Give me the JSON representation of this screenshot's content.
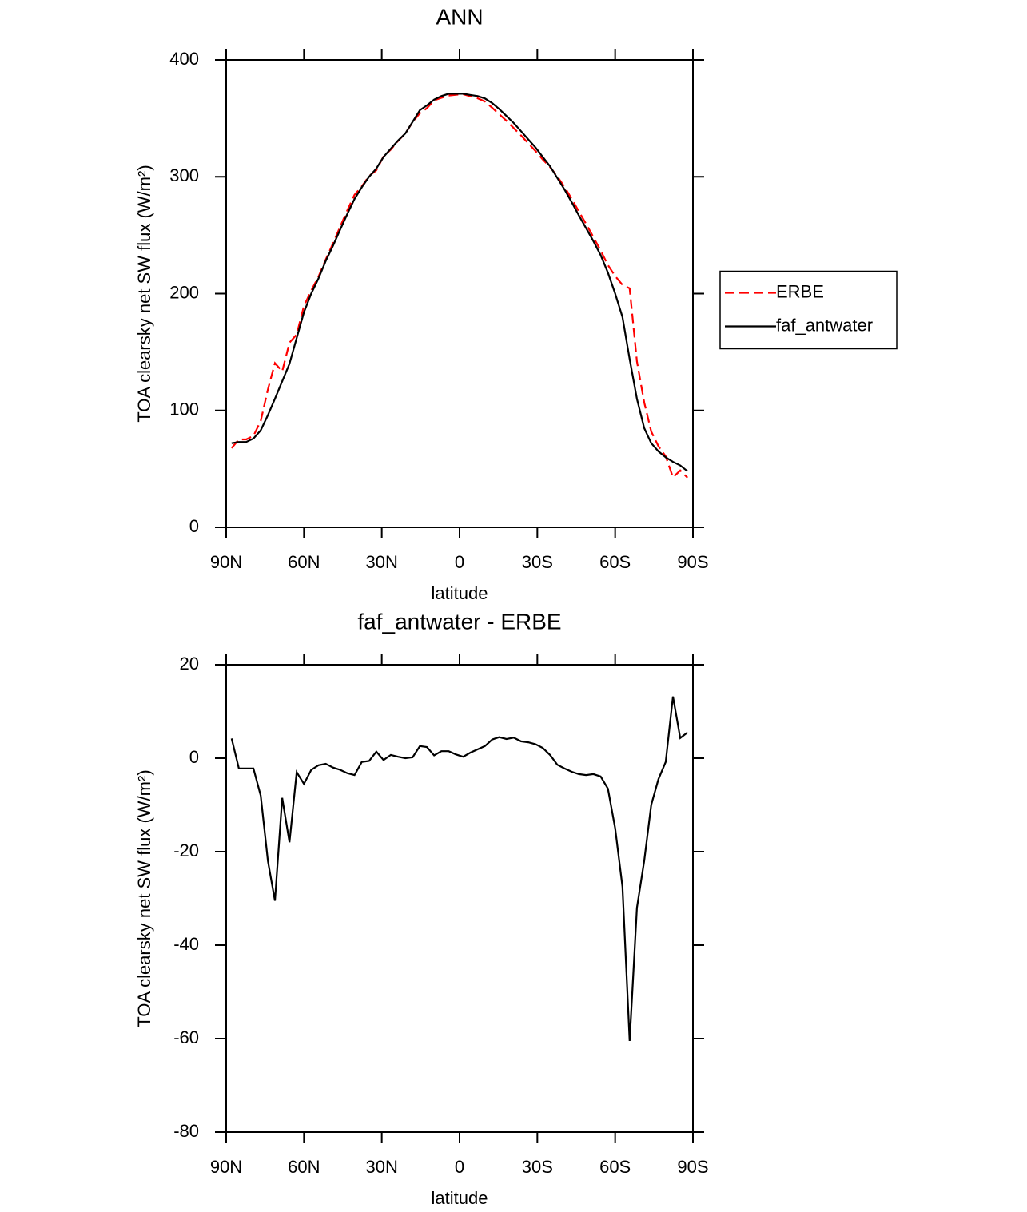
{
  "chart_data": [
    {
      "type": "line",
      "title": "ANN",
      "xlabel": "latitude",
      "ylabel": "TOA clearsky net SW flux (W/m²)",
      "x": [
        87.9,
        85.1,
        82.3,
        79.5,
        76.7,
        73.9,
        71.2,
        68.4,
        65.6,
        62.8,
        60.0,
        57.2,
        54.4,
        51.6,
        48.8,
        46.0,
        43.3,
        40.5,
        37.7,
        34.9,
        32.1,
        29.3,
        26.5,
        23.7,
        20.9,
        18.1,
        15.3,
        12.6,
        9.8,
        7.0,
        4.2,
        1.4,
        -1.4,
        -4.2,
        -7.0,
        -9.8,
        -12.6,
        -15.3,
        -18.1,
        -20.9,
        -23.7,
        -26.5,
        -29.3,
        -32.1,
        -34.9,
        -37.7,
        -40.5,
        -43.3,
        -46.0,
        -48.8,
        -51.6,
        -54.4,
        -57.2,
        -60.0,
        -62.8,
        -65.6,
        -68.4,
        -71.2,
        -73.9,
        -76.7,
        -79.5,
        -82.3,
        -85.1,
        -87.9
      ],
      "series": [
        {
          "name": "ERBE",
          "color": "#ff0000",
          "line_style": "dashed",
          "values": [
            67.8,
            75.2,
            75.2,
            78.2,
            91,
            118,
            140.5,
            133.5,
            158,
            165,
            189.5,
            202.5,
            214.5,
            229.2,
            243,
            257.5,
            271.2,
            284.6,
            291.8,
            300.6,
            305.6,
            317.4,
            323.3,
            330.7,
            337,
            346.8,
            354.4,
            358.6,
            365.4,
            367.5,
            369.5,
            370.2,
            370.7,
            368.8,
            367.1,
            364.4,
            359,
            353.5,
            347.9,
            341.6,
            335.4,
            328.6,
            322,
            314.8,
            308.3,
            300.4,
            291.2,
            280.9,
            270.4,
            259.6,
            248.4,
            236.9,
            224.5,
            215,
            207.5,
            204.5,
            142,
            107,
            82,
            69.5,
            60.8,
            42.8,
            48.7,
            42.5
          ]
        },
        {
          "name": "faf_antwater",
          "color": "#000000",
          "line_style": "solid",
          "values": [
            72,
            73,
            73,
            76,
            83,
            96,
            110,
            125,
            140,
            162,
            184,
            200,
            213,
            228,
            241,
            255,
            268,
            281,
            291,
            300,
            307,
            317,
            324,
            331,
            337,
            347,
            357,
            361,
            366,
            369,
            371,
            371,
            371,
            370,
            369,
            367,
            363,
            358,
            352,
            346,
            339,
            332,
            325,
            317,
            309,
            299,
            289,
            278,
            267,
            256,
            245,
            233,
            218,
            200,
            180,
            144,
            110,
            85,
            72,
            65,
            60,
            56,
            53,
            48
          ]
        }
      ],
      "xlim": [
        90,
        -90
      ],
      "xticks": [
        {
          "value": 90,
          "label": "90N"
        },
        {
          "value": 60,
          "label": "60N"
        },
        {
          "value": 30,
          "label": "30N"
        },
        0,
        {
          "value": -30,
          "label": "30S"
        },
        {
          "value": -60,
          "label": "60S"
        },
        {
          "value": -90,
          "label": "90S"
        }
      ],
      "ylim": [
        0,
        400
      ],
      "yticks": [
        0,
        100,
        200,
        300,
        400
      ],
      "legend": "right"
    },
    {
      "type": "line",
      "title": "faf_antwater - ERBE",
      "xlabel": "latitude",
      "ylabel": "TOA clearsky net SW flux (W/m²)",
      "x": [
        87.9,
        85.1,
        82.3,
        79.5,
        76.7,
        73.9,
        71.2,
        68.4,
        65.6,
        62.8,
        60.0,
        57.2,
        54.4,
        51.6,
        48.8,
        46.0,
        43.3,
        40.5,
        37.7,
        34.9,
        32.1,
        29.3,
        26.5,
        23.7,
        20.9,
        18.1,
        15.3,
        12.6,
        9.8,
        7.0,
        4.2,
        1.4,
        -1.4,
        -4.2,
        -7.0,
        -9.8,
        -12.6,
        -15.3,
        -18.1,
        -20.9,
        -23.7,
        -26.5,
        -29.3,
        -32.1,
        -34.9,
        -37.7,
        -40.5,
        -43.3,
        -46.0,
        -48.8,
        -51.6,
        -54.4,
        -57.2,
        -60.0,
        -62.8,
        -65.6,
        -68.4,
        -71.2,
        -73.9,
        -76.7,
        -79.5,
        -82.3,
        -85.1,
        -87.9
      ],
      "series": [
        {
          "color": "#000000",
          "line_style": "solid",
          "values": [
            4.2,
            -2.2,
            -2.2,
            -2.2,
            -8,
            -22,
            -30.5,
            -8.5,
            -18,
            -3,
            -5.5,
            -2.5,
            -1.5,
            -1.2,
            -2,
            -2.5,
            -3.2,
            -3.6,
            -0.8,
            -0.6,
            1.4,
            -0.4,
            0.7,
            0.3,
            0,
            0.2,
            2.6,
            2.4,
            0.6,
            1.5,
            1.5,
            0.8,
            0.3,
            1.2,
            1.9,
            2.6,
            4,
            4.5,
            4.1,
            4.4,
            3.6,
            3.4,
            3,
            2.2,
            0.7,
            -1.4,
            -2.2,
            -2.9,
            -3.4,
            -3.6,
            -3.4,
            -3.9,
            -6.5,
            -15,
            -27.5,
            -60.5,
            -32,
            -22,
            -10,
            -4.5,
            -0.8,
            13.2,
            4.3,
            5.5
          ]
        }
      ],
      "xlim": [
        90,
        -90
      ],
      "xticks": [
        {
          "value": 90,
          "label": "90N"
        },
        {
          "value": 60,
          "label": "60N"
        },
        {
          "value": 30,
          "label": "30N"
        },
        0,
        {
          "value": -30,
          "label": "30S"
        },
        {
          "value": -60,
          "label": "60S"
        },
        {
          "value": -90,
          "label": "90S"
        }
      ],
      "ylim": [
        -80,
        20
      ],
      "yticks": [
        -80,
        -60,
        -40,
        -20,
        0,
        20
      ]
    }
  ]
}
